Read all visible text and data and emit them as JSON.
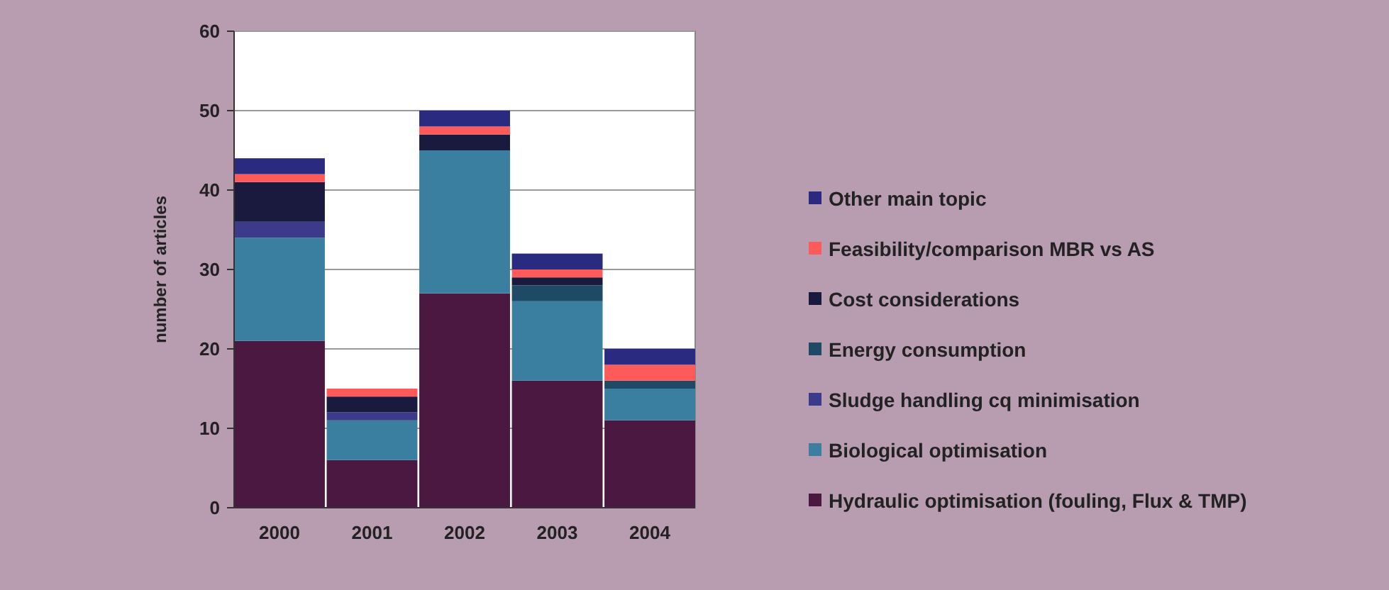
{
  "chart_data": {
    "type": "bar",
    "stacked": true,
    "ylabel": "number of articles",
    "categories": [
      "2000",
      "2001",
      "2002",
      "2003",
      "2004"
    ],
    "series": [
      {
        "name": "Hydraulic optimisation (fouling, Flux & TMP)",
        "color": "#4a1840",
        "values": [
          21,
          6,
          27,
          16,
          11
        ]
      },
      {
        "name": "Biological optimisation",
        "color": "#3a7fa0",
        "values": [
          13,
          5,
          18,
          10,
          4
        ]
      },
      {
        "name": "Sludge handling cq minimisation",
        "color": "#3c3a8a",
        "values": [
          2,
          1,
          0,
          0,
          0
        ]
      },
      {
        "name": "Energy consumption",
        "color": "#1f4a66",
        "values": [
          0,
          0,
          0,
          2,
          1
        ]
      },
      {
        "name": "Cost considerations",
        "color": "#1a1a3e",
        "values": [
          5,
          2,
          2,
          1,
          0
        ]
      },
      {
        "name": "Feasibility/comparison MBR vs  AS",
        "color": "#ff5a5a",
        "values": [
          1,
          1,
          1,
          1,
          2
        ]
      },
      {
        "name": "Other main topic",
        "color": "#2a2a80",
        "values": [
          2,
          0,
          2,
          2,
          2
        ]
      }
    ],
    "ylim": [
      0,
      60
    ],
    "yticks": [
      0,
      10,
      20,
      30,
      40,
      50,
      60
    ],
    "grid": "y",
    "legend": "right"
  }
}
